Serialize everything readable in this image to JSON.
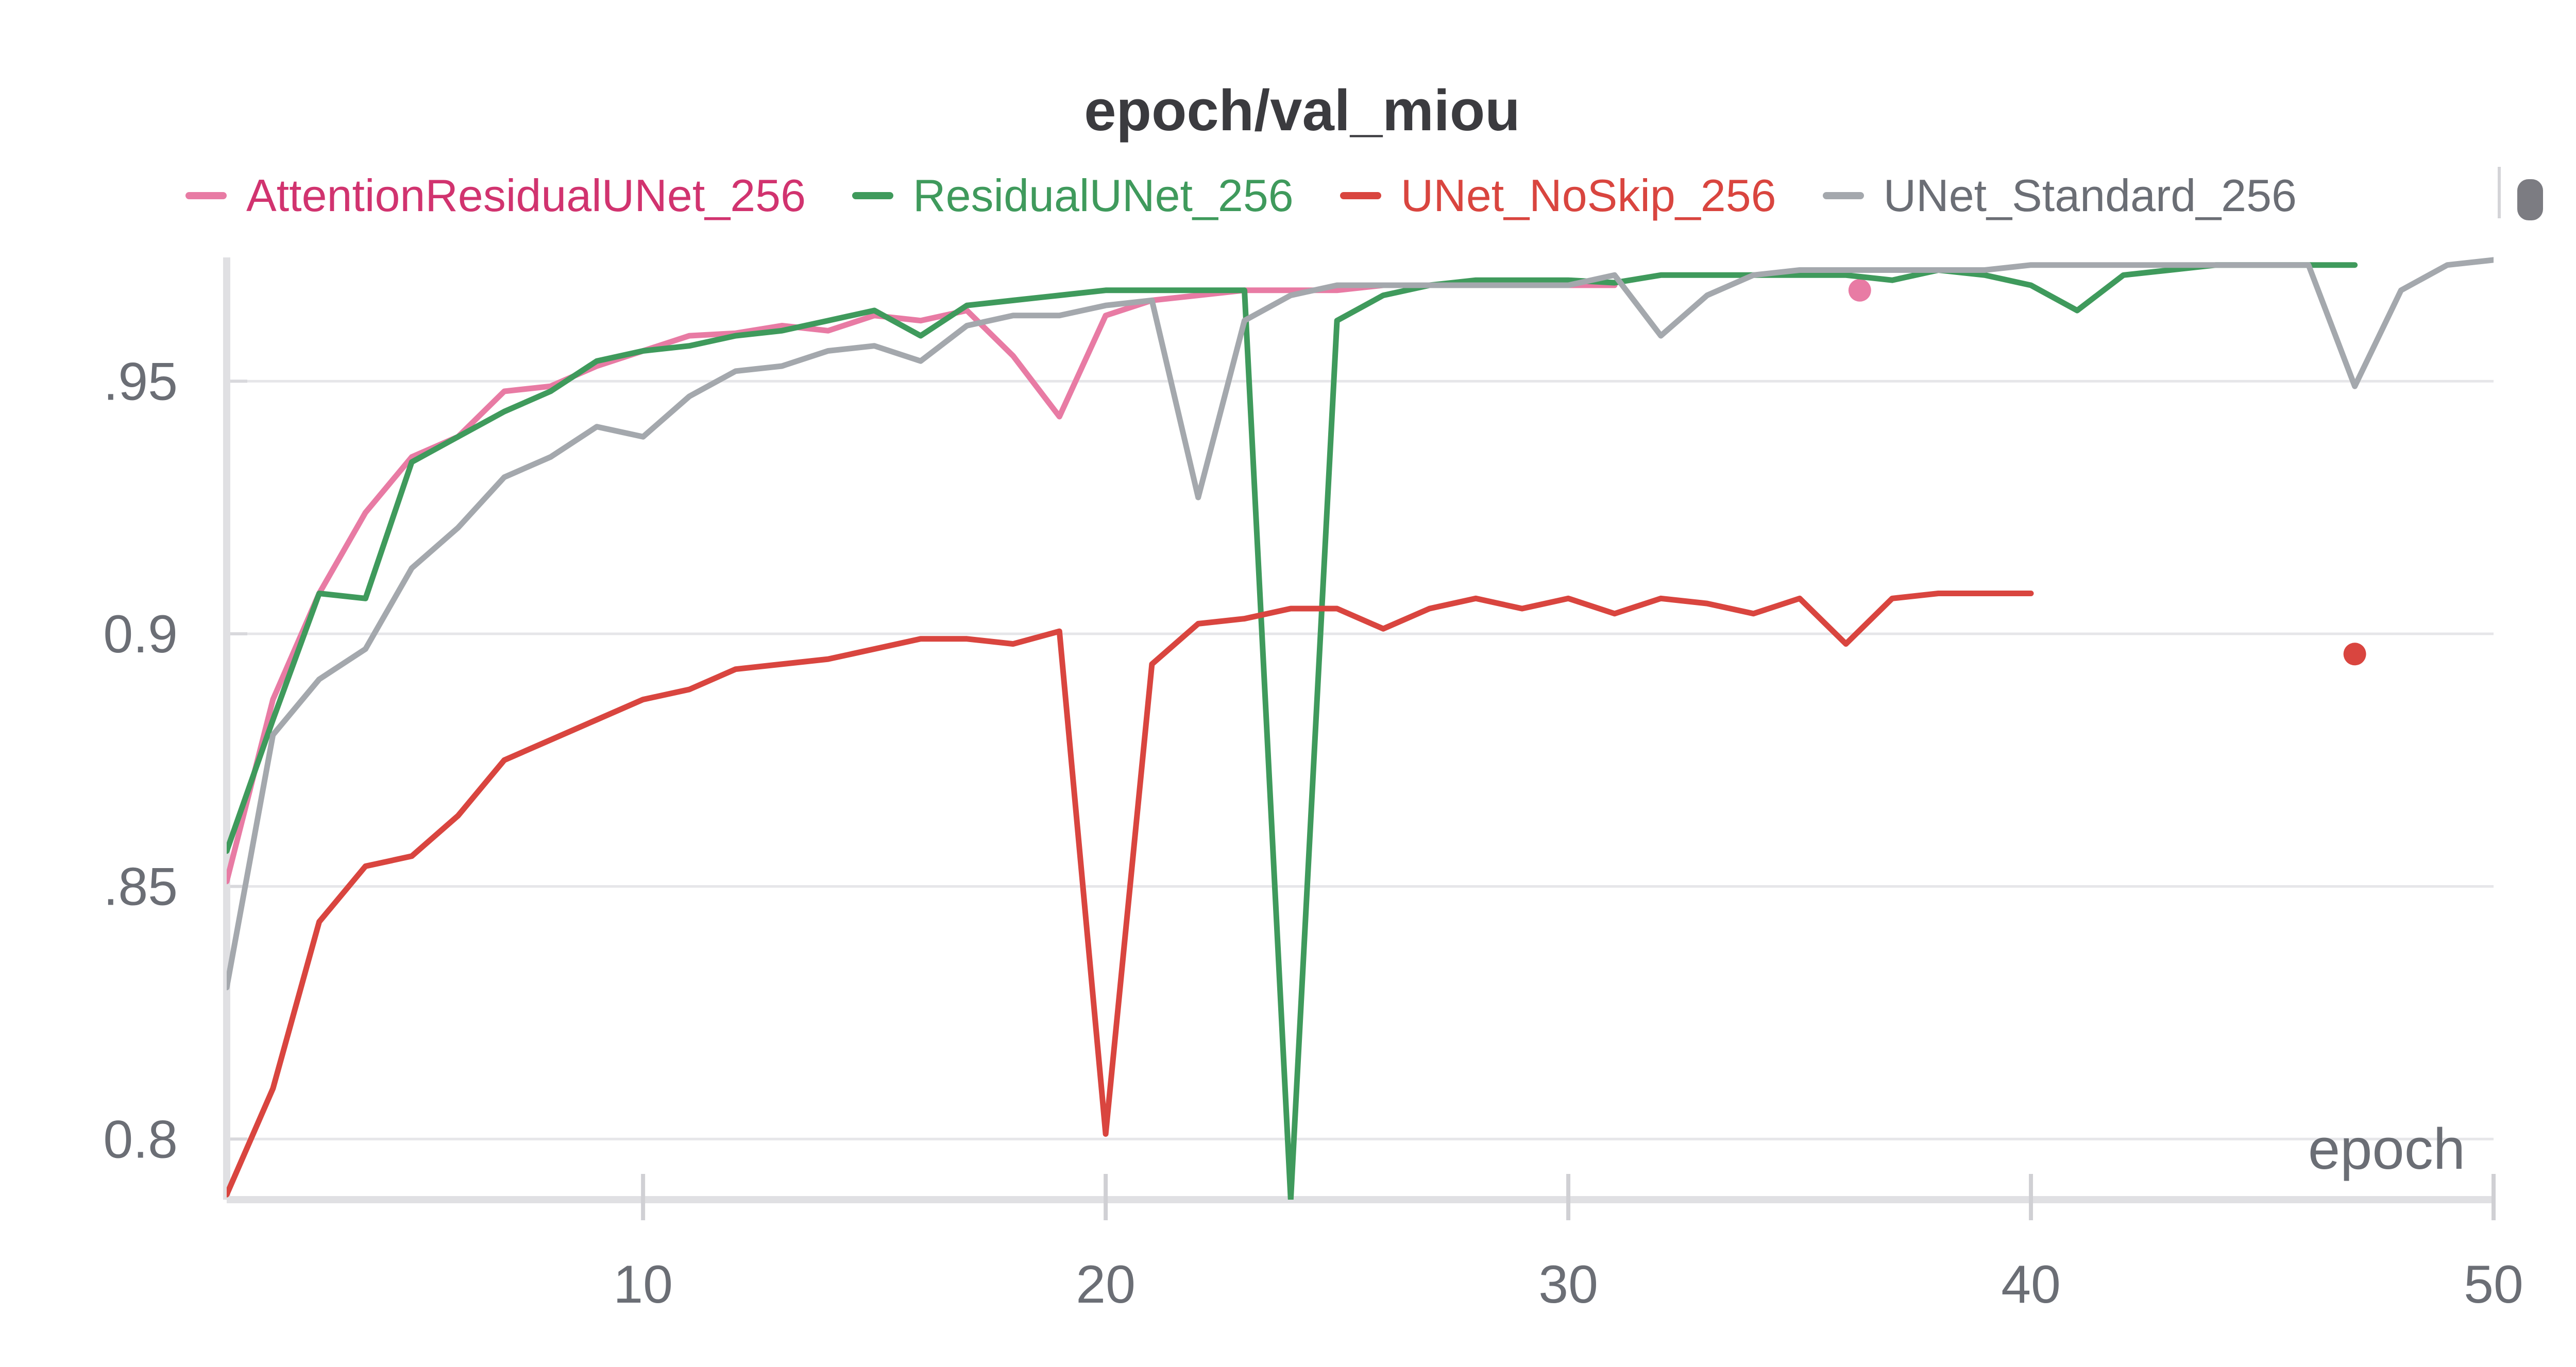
{
  "chart_data": {
    "type": "line",
    "title": "epoch/val_miou",
    "xlabel": "epoch",
    "ylabel": "",
    "xlim": [
      1,
      50
    ],
    "ylim": [
      0.788,
      0.9745
    ],
    "x_ticks": [
      10,
      20,
      30,
      40,
      50
    ],
    "x_tick_labels": [
      "10",
      "20",
      "30",
      "40",
      "50"
    ],
    "y_ticks": [
      0.8,
      0.85,
      0.9,
      0.95
    ],
    "y_tick_labels": [
      "0.8",
      ".85",
      "0.9",
      ".95"
    ],
    "grid": "horizontal",
    "legend_position": "top",
    "series": [
      {
        "name": "AttentionResidualUNet_256",
        "color": "#e87ba4",
        "legend_text_color": "#d1336f",
        "x": [
          1,
          2,
          3,
          4,
          5,
          6,
          7,
          8,
          9,
          10,
          11,
          12,
          13,
          14,
          15,
          16,
          17,
          18,
          19,
          20,
          21,
          22,
          23,
          24,
          25,
          26,
          27,
          28,
          29,
          30,
          31
        ],
        "values": [
          0.851,
          0.887,
          0.908,
          0.924,
          0.935,
          0.939,
          0.948,
          0.949,
          0.953,
          0.956,
          0.959,
          0.9595,
          0.961,
          0.96,
          0.963,
          0.962,
          0.964,
          0.955,
          0.943,
          0.963,
          0.966,
          0.967,
          0.968,
          0.968,
          0.968,
          0.969,
          0.969,
          0.969,
          0.969,
          0.969,
          0.969
        ],
        "extra_points": [
          {
            "x": 36.3,
            "y": 0.968
          }
        ]
      },
      {
        "name": "ResidualUNet_256",
        "color": "#3f9a5c",
        "legend_text_color": "#3f9a5c",
        "x": [
          1,
          2,
          3,
          4,
          5,
          6,
          7,
          8,
          9,
          10,
          11,
          12,
          13,
          14,
          15,
          16,
          17,
          18,
          19,
          20,
          21,
          22,
          23,
          24,
          25,
          26,
          27,
          28,
          29,
          30,
          31,
          32,
          33,
          34,
          35,
          36,
          37,
          38,
          39,
          40,
          41,
          42,
          43,
          44,
          45,
          46,
          47
        ],
        "values": [
          0.857,
          0.883,
          0.908,
          0.907,
          0.934,
          0.939,
          0.944,
          0.948,
          0.954,
          0.956,
          0.957,
          0.959,
          0.96,
          0.962,
          0.964,
          0.959,
          0.965,
          0.966,
          0.967,
          0.968,
          0.968,
          0.968,
          0.968,
          0.788,
          0.962,
          0.967,
          0.969,
          0.97,
          0.97,
          0.97,
          0.9695,
          0.971,
          0.971,
          0.971,
          0.971,
          0.971,
          0.97,
          0.972,
          0.971,
          0.969,
          0.964,
          0.971,
          0.972,
          0.973,
          0.973,
          0.973,
          0.973
        ]
      },
      {
        "name": "UNet_NoSkip_256",
        "color": "#d9453f",
        "legend_text_color": "#d9453f",
        "x": [
          1,
          2,
          3,
          4,
          5,
          6,
          7,
          8,
          9,
          10,
          11,
          12,
          13,
          14,
          15,
          16,
          17,
          18,
          19,
          20,
          21,
          22,
          23,
          24,
          25,
          26,
          27,
          28,
          29,
          30,
          31,
          32,
          33,
          34,
          35,
          36,
          37,
          38,
          39,
          40
        ],
        "values": [
          0.789,
          0.81,
          0.843,
          0.854,
          0.856,
          0.864,
          0.875,
          0.879,
          0.883,
          0.887,
          0.889,
          0.893,
          0.894,
          0.895,
          0.897,
          0.899,
          0.899,
          0.898,
          0.9005,
          0.801,
          0.894,
          0.902,
          0.903,
          0.905,
          0.905,
          0.901,
          0.905,
          0.907,
          0.905,
          0.907,
          0.904,
          0.907,
          0.906,
          0.904,
          0.907,
          0.898,
          0.907,
          0.908,
          0.908,
          0.908
        ],
        "extra_points": [
          {
            "x": 47,
            "y": 0.896
          }
        ]
      },
      {
        "name": "UNet_Standard_256",
        "color": "#a4a8ad",
        "legend_text_color": "#6b6e75",
        "x": [
          1,
          2,
          3,
          4,
          5,
          6,
          7,
          8,
          9,
          10,
          11,
          12,
          13,
          14,
          15,
          16,
          17,
          18,
          19,
          20,
          21,
          22,
          23,
          24,
          25,
          26,
          27,
          28,
          29,
          30,
          31,
          32,
          33,
          34,
          35,
          36,
          37,
          38,
          39,
          40,
          41,
          42,
          43,
          44,
          45,
          46,
          47,
          48,
          49,
          50
        ],
        "values": [
          0.83,
          0.88,
          0.891,
          0.897,
          0.913,
          0.921,
          0.931,
          0.935,
          0.941,
          0.939,
          0.947,
          0.952,
          0.953,
          0.956,
          0.957,
          0.954,
          0.961,
          0.963,
          0.963,
          0.965,
          0.966,
          0.927,
          0.962,
          0.967,
          0.969,
          0.969,
          0.969,
          0.969,
          0.969,
          0.969,
          0.971,
          0.959,
          0.967,
          0.971,
          0.972,
          0.972,
          0.972,
          0.972,
          0.972,
          0.973,
          0.973,
          0.973,
          0.973,
          0.973,
          0.973,
          0.973,
          0.949,
          0.968,
          0.973,
          0.974
        ]
      }
    ]
  },
  "legend": {
    "scroll_icon": "scroll-handle-icon"
  }
}
